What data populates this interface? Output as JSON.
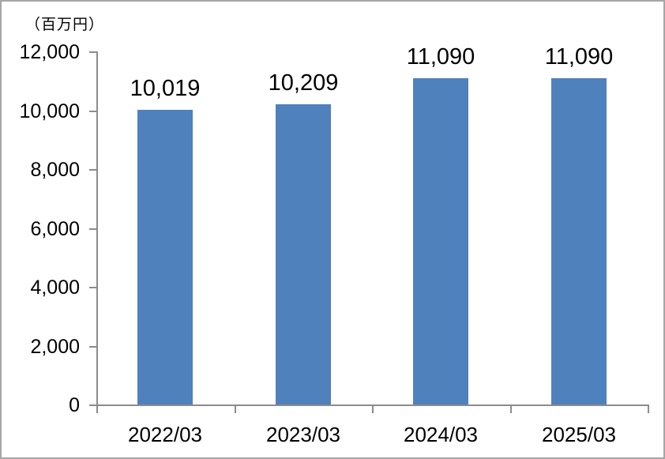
{
  "chart_data": {
    "type": "bar",
    "unit_label": "（百万円）",
    "categories": [
      "2022/03",
      "2023/03",
      "2024/03",
      "2025/03"
    ],
    "values": [
      10019,
      10209,
      11090,
      11090
    ],
    "data_labels": [
      "10,019",
      "10,209",
      "11,090",
      "11,090"
    ],
    "y_tick_labels": [
      "0",
      "2,000",
      "4,000",
      "6,000",
      "8,000",
      "10,000",
      "12,000"
    ],
    "ylim": [
      0,
      12000
    ],
    "y_step": 2000,
    "grid": false,
    "legend": "none",
    "bar_color": "#4f81bd",
    "axis_color": "#8c8c8c",
    "label_color": "#000000",
    "background_color": "#ffffff",
    "border_color": "#a6a6a6"
  }
}
